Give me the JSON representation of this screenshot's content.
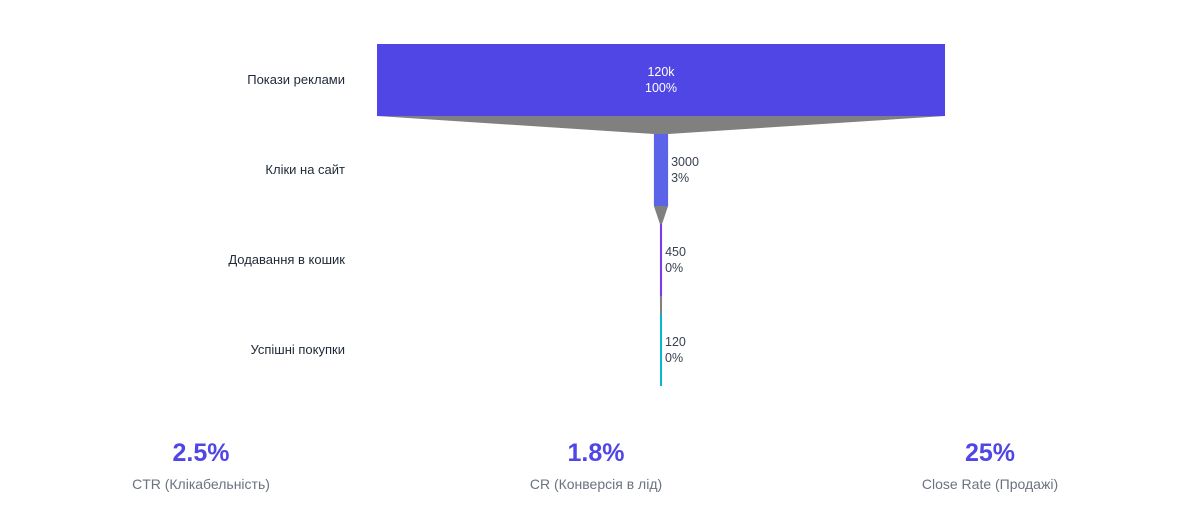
{
  "chart_data": {
    "type": "funnel",
    "categories": [
      "Покази реклами",
      "Кліки на сайт",
      "Додавання в кошик",
      "Успішні покупки"
    ],
    "values": [
      120000,
      3000,
      450,
      120
    ],
    "value_labels": [
      "120k",
      "3000",
      "450",
      "120"
    ],
    "percent_labels": [
      "100%",
      "3%",
      "0%",
      "0%"
    ],
    "colors": [
      "#4f46e5",
      "#5b63e8",
      "#7c3aed",
      "#06b6d4"
    ],
    "connector_color": "#808080"
  },
  "metrics": [
    {
      "value": "2.5%",
      "label": "CTR (Клікабельність)"
    },
    {
      "value": "1.8%",
      "label": "CR (Конверсія в лід)"
    },
    {
      "value": "25%",
      "label": "Close Rate (Продажі)"
    }
  ],
  "colors": {
    "metric_value": "#4f46e5",
    "metric_label": "#6b7280"
  }
}
